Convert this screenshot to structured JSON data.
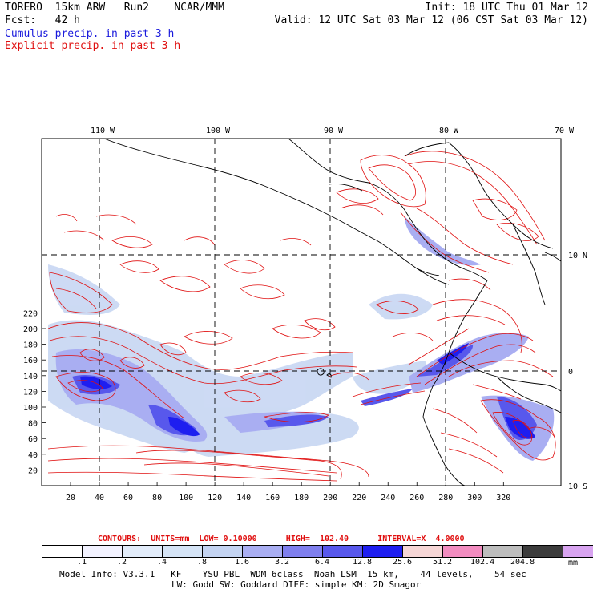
{
  "header": {
    "line1_left": "TORERO  15km ARW   Run2    NCAR/MMM",
    "line1_right": "Init: 18 UTC Thu 01 Mar 12",
    "line2_left": "Fcst:   42 h",
    "line2_right": "Valid: 12 UTC Sat 03 Mar 12 (06 CST Sat 03 Mar 12)",
    "cumulus_label": "Cumulus precip. in past 3 h",
    "explicit_label": "Explicit precip. in past 3 h"
  },
  "map": {
    "lon_labels": [
      "110 W",
      "100 W",
      "90 W",
      "80 W",
      "70 W"
    ],
    "lat_labels": [
      "10 N",
      "0",
      "10 S"
    ],
    "x_ticks": [
      "20",
      "40",
      "60",
      "80",
      "100",
      "120",
      "140",
      "160",
      "180",
      "200",
      "220",
      "240",
      "260",
      "280",
      "300",
      "320"
    ],
    "y_ticks": [
      "20",
      "40",
      "60",
      "80",
      "100",
      "120",
      "140",
      "160",
      "180",
      "200",
      "220"
    ]
  },
  "contour_info": {
    "text": "CONTOURS:  UNITS=mm  LOW= 0.10000      HIGH=  102.40      INTERVAL=X  4.0000"
  },
  "legend": {
    "colors": [
      "#ffffff",
      "#f2f2ff",
      "#e2ecfa",
      "#d5e4f6",
      "#c4d4f2",
      "#a9aef2",
      "#7f7fee",
      "#5858ec",
      "#1e1ef0",
      "#f6d6d6",
      "#f28cc0",
      "#bdbdbd",
      "#3c3c3c",
      "#d8a4f0"
    ],
    "labels": [
      ".1",
      ".2",
      ".4",
      ".8",
      "1.6",
      "3.2",
      "6.4",
      "12.8",
      "25.6",
      "51.2",
      "102.4",
      "204.8"
    ],
    "units": "mm"
  },
  "footer": {
    "line1": "Model Info: V3.3.1   KF    YSU PBL  WDM 6class  Noah LSM  15 km,    44 levels,    54 sec",
    "line2": "LW: Godd SW: Goddard DIFF: simple KM: 2D Smagor"
  }
}
